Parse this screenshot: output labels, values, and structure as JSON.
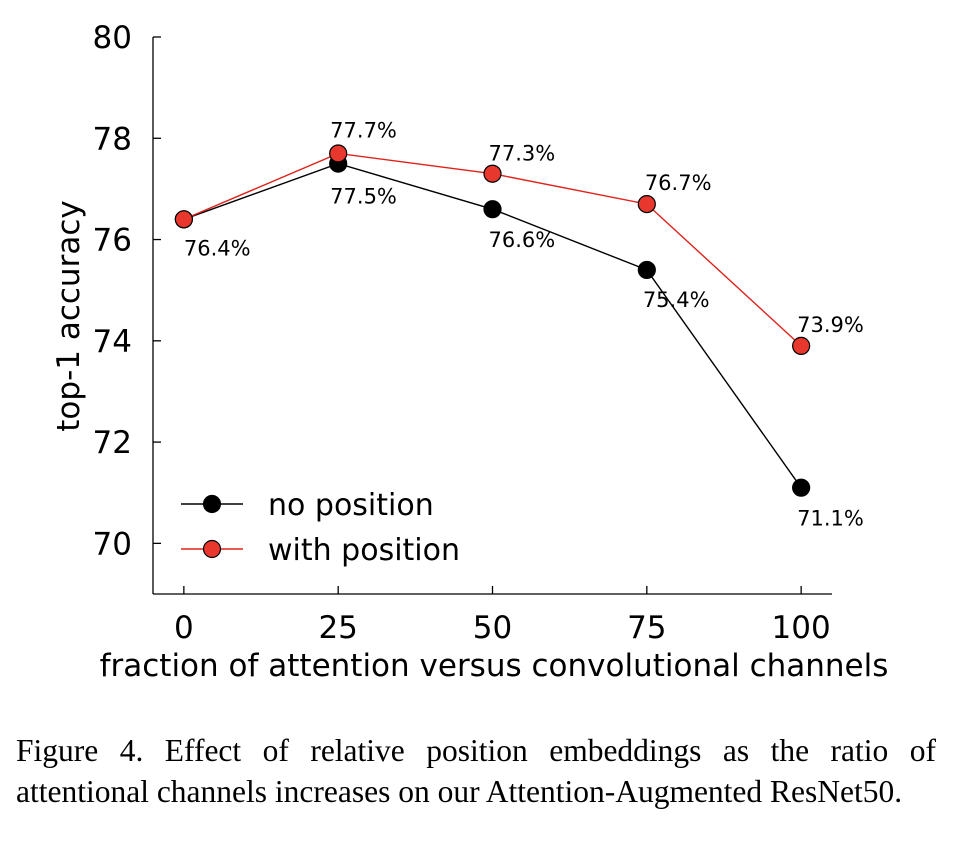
{
  "chart_data": {
    "type": "line",
    "title": "",
    "xlabel": "fraction of attention versus convolutional channels",
    "ylabel": "top-1 accuracy",
    "x": [
      0,
      25,
      50,
      75,
      100
    ],
    "xticks": [
      "0",
      "25",
      "50",
      "75",
      "100"
    ],
    "yticks": [
      "70",
      "72",
      "74",
      "76",
      "78",
      "80"
    ],
    "ylim": [
      69,
      80
    ],
    "xlim": [
      -5,
      105
    ],
    "grid": false,
    "legend_position": "bottom-left",
    "series": [
      {
        "name": "no position",
        "color": "#000000",
        "marker_color": "#000000",
        "values": [
          76.4,
          77.5,
          76.6,
          75.4,
          71.1
        ],
        "labels": [
          "76.4%",
          "77.5%",
          "76.6%",
          "75.4%",
          "71.1%"
        ]
      },
      {
        "name": "with position",
        "color": "#e0221b",
        "marker_color": "#e8372c",
        "values": [
          76.4,
          77.7,
          77.3,
          76.7,
          73.9
        ],
        "labels": [
          "",
          "77.7%",
          "77.3%",
          "76.7%",
          "73.9%"
        ]
      }
    ]
  },
  "caption": "Figure 4. Effect of relative position embeddings as the ratio of attentional channels increases on our Attention-Augmented ResNet50."
}
